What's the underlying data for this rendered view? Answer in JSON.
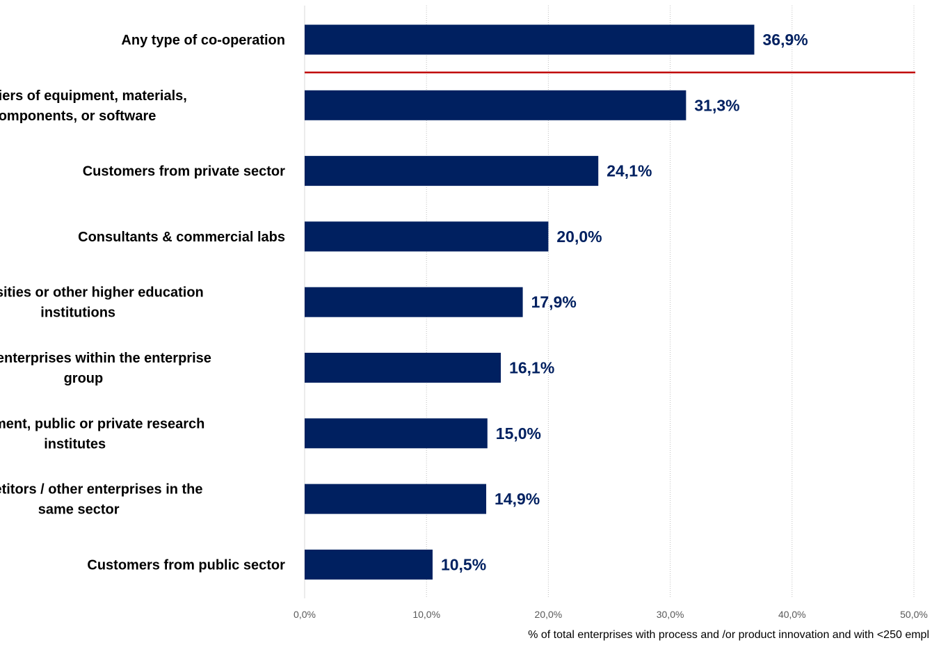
{
  "chart_data": {
    "type": "bar",
    "orientation": "horizontal",
    "categories": [
      "Any type of co-operation",
      "Suppliers of equipment, materials, components, or software",
      "Customers from private sector",
      "Consultants & commercial labs",
      "Universities or other higher education institutions",
      "Other enterprises within the enterprise group",
      "Government, public or private research institutes",
      "Competitors  / other enterprises in the same sector",
      "Customers from public sector"
    ],
    "category_lines": [
      [
        "Any type of co-operation"
      ],
      [
        "Suppliers of equipment, materials,",
        "components, or software"
      ],
      [
        "Customers from private sector"
      ],
      [
        "Consultants & commercial labs"
      ],
      [
        "Universities or other higher education",
        "institutions"
      ],
      [
        "Other enterprises within the enterprise",
        "group"
      ],
      [
        "Government, public or private research",
        "institutes"
      ],
      [
        "Competitors  / other enterprises in the",
        "same sector"
      ],
      [
        "Customers from public sector"
      ]
    ],
    "values": [
      36.9,
      31.3,
      24.1,
      20.0,
      17.9,
      16.1,
      15.0,
      14.9,
      10.5
    ],
    "value_labels": [
      "36,9%",
      "31,3%",
      "24,1%",
      "20,0%",
      "17,9%",
      "16,1%",
      "15,0%",
      "14,9%",
      "10,5%"
    ],
    "xlim": [
      0,
      50
    ],
    "x_ticks": [
      0,
      10,
      20,
      30,
      40,
      50
    ],
    "x_tick_labels": [
      "0,0%",
      "10,0%",
      "20,0%",
      "30,0%",
      "40,0%",
      "50,0%"
    ],
    "xlabel": "% of total enterprises with process and /or product innovation and with <250 empl",
    "ylabel": "",
    "title": "",
    "grid": "vertical dotted",
    "legend": "none",
    "separator_after_category": 0,
    "colors": {
      "bar": "#002060",
      "value_label": "#002060",
      "separator": "#C00000",
      "grid": "#BFBFBF",
      "axis": "#D9D9D9"
    }
  }
}
